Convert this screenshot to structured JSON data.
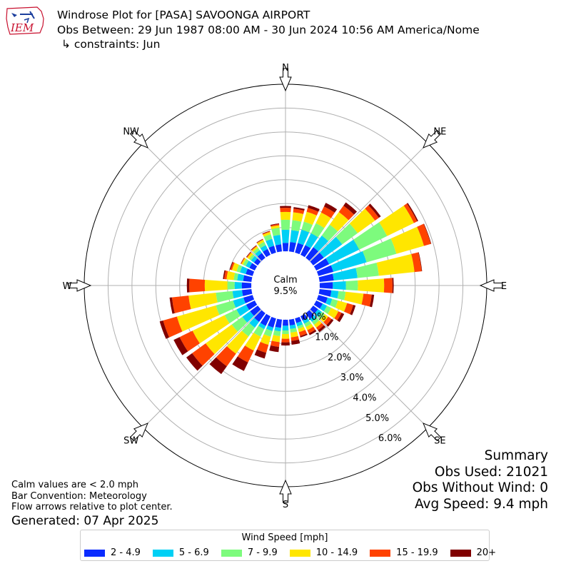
{
  "header": {
    "line1": "Windrose Plot for [PASA] SAVOONGA AIRPORT",
    "line2": "Obs Between: 29 Jun 1987 08:00 AM - 30 Jun 2024 10:56 AM America/Nome",
    "line3": "↳ constraints: Jun"
  },
  "logo": {
    "text": "IEM",
    "color": "#c8102e",
    "accent": "#1c3f9e"
  },
  "summary": {
    "title": "Summary",
    "obs_used": "Obs Used: 21021",
    "obs_without_wind": "Obs Without Wind: 0",
    "avg_speed": "Avg Speed: 9.4 mph"
  },
  "notes": {
    "calm_note": "Calm values are < 2.0 mph",
    "bar_convention": "Bar Convention: Meteorology",
    "flow_arrows": "Flow arrows relative to plot center.",
    "generated": "Generated: 07 Apr 2025"
  },
  "legend": {
    "title": "Wind Speed [mph]",
    "items": [
      {
        "label": "2 - 4.9",
        "color": "#0b2cff"
      },
      {
        "label": "5 - 6.9",
        "color": "#00d0f5"
      },
      {
        "label": "7 - 9.9",
        "color": "#7dfb7d"
      },
      {
        "label": "10 - 14.9",
        "color": "#ffe600"
      },
      {
        "label": "15 - 19.9",
        "color": "#ff4200"
      },
      {
        "label": "20+",
        "color": "#800000"
      }
    ]
  },
  "chart_data": {
    "type": "windrose",
    "units": "%",
    "calm_label": "Calm",
    "calm_value": "9.5%",
    "radial_ticks": [
      0,
      1,
      2,
      3,
      4,
      5,
      6
    ],
    "radial_tick_labels": [
      "0.0%",
      "1.0%",
      "2.0%",
      "3.0%",
      "4.0%",
      "5.0%",
      "6.0%"
    ],
    "rmax": 7.0,
    "compass_labels": [
      "N",
      "NE",
      "E",
      "SE",
      "S",
      "SW",
      "W",
      "NW"
    ],
    "speed_bins": [
      "2 - 4.9",
      "5 - 6.9",
      "7 - 9.9",
      "10 - 14.9",
      "15 - 19.9",
      "20+"
    ],
    "bin_colors": [
      "#0b2cff",
      "#00d0f5",
      "#7dfb7d",
      "#ffe600",
      "#ff4200",
      "#800000"
    ],
    "directions_deg": [
      0,
      10,
      20,
      30,
      40,
      50,
      60,
      70,
      80,
      90,
      100,
      110,
      120,
      130,
      140,
      150,
      160,
      170,
      180,
      190,
      200,
      210,
      220,
      230,
      240,
      250,
      260,
      270,
      280,
      290,
      300,
      310,
      320,
      330,
      340,
      350
    ],
    "cumulative": [
      [
        0.35,
        0.9,
        1.32,
        1.65,
        1.82,
        1.9
      ],
      [
        0.4,
        0.9,
        1.32,
        1.65,
        1.8,
        1.87
      ],
      [
        0.42,
        1.0,
        1.35,
        1.78,
        1.95,
        2.07
      ],
      [
        0.45,
        1.0,
        1.47,
        1.97,
        2.25,
        2.42
      ],
      [
        0.55,
        1.15,
        1.72,
        2.37,
        2.7,
        2.87
      ],
      [
        0.55,
        1.5,
        2.3,
        3.2,
        3.4,
        3.5
      ],
      [
        0.6,
        2.0,
        3.3,
        4.55,
        4.7,
        4.75
      ],
      [
        0.65,
        2.1,
        3.4,
        4.6,
        4.9,
        4.92
      ],
      [
        0.6,
        1.6,
        2.5,
        4.0,
        4.3,
        4.32
      ],
      [
        0.55,
        1.1,
        1.6,
        2.7,
        3.05,
        3.1
      ],
      [
        0.5,
        0.8,
        1.1,
        1.85,
        2.2,
        2.3
      ],
      [
        0.4,
        0.6,
        0.85,
        1.25,
        1.52,
        1.62
      ],
      [
        0.3,
        0.5,
        0.7,
        1.03,
        1.18,
        1.3
      ],
      [
        0.25,
        0.45,
        0.6,
        0.78,
        0.95,
        1.05
      ],
      [
        0.3,
        0.45,
        0.6,
        0.75,
        0.88,
        0.98
      ],
      [
        0.2,
        0.35,
        0.5,
        0.65,
        0.8,
        0.88
      ],
      [
        0.2,
        0.35,
        0.45,
        0.6,
        0.77,
        0.83
      ],
      [
        0.25,
        0.4,
        0.55,
        0.75,
        0.9,
        1.06
      ],
      [
        0.25,
        0.45,
        0.6,
        0.8,
        0.95,
        1.08
      ],
      [
        0.35,
        0.5,
        0.7,
        0.95,
        1.15,
        1.37
      ],
      [
        0.4,
        0.55,
        0.8,
        1.15,
        1.5,
        1.75
      ],
      [
        0.45,
        0.6,
        0.95,
        1.6,
        2.15,
        2.55
      ],
      [
        0.45,
        0.75,
        1.2,
        2.1,
        2.75,
        3.15
      ],
      [
        0.4,
        0.8,
        1.35,
        2.7,
        3.4,
        3.7
      ],
      [
        0.4,
        0.85,
        1.4,
        2.9,
        3.5,
        3.78
      ],
      [
        0.4,
        0.85,
        1.6,
        3.3,
        3.9,
        4.05
      ],
      [
        0.4,
        0.8,
        1.5,
        2.65,
        3.35,
        3.45
      ],
      [
        0.4,
        0.7,
        1.0,
        1.95,
        2.6,
        2.7
      ],
      [
        0.35,
        0.6,
        0.75,
        1.05,
        1.15,
        1.2
      ],
      [
        0.3,
        0.55,
        0.7,
        0.9,
        0.97,
        1.0
      ],
      [
        0.25,
        0.42,
        0.55,
        0.62,
        0.65,
        0.66
      ],
      [
        0.2,
        0.35,
        0.45,
        0.55,
        0.58,
        0.6
      ],
      [
        0.25,
        0.4,
        0.52,
        0.6,
        0.63,
        0.65
      ],
      [
        0.27,
        0.45,
        0.6,
        0.7,
        0.72,
        0.74
      ],
      [
        0.3,
        0.6,
        0.8,
        0.9,
        0.93,
        0.95
      ],
      [
        0.3,
        0.7,
        1.0,
        1.1,
        1.15,
        1.18
      ]
    ]
  }
}
